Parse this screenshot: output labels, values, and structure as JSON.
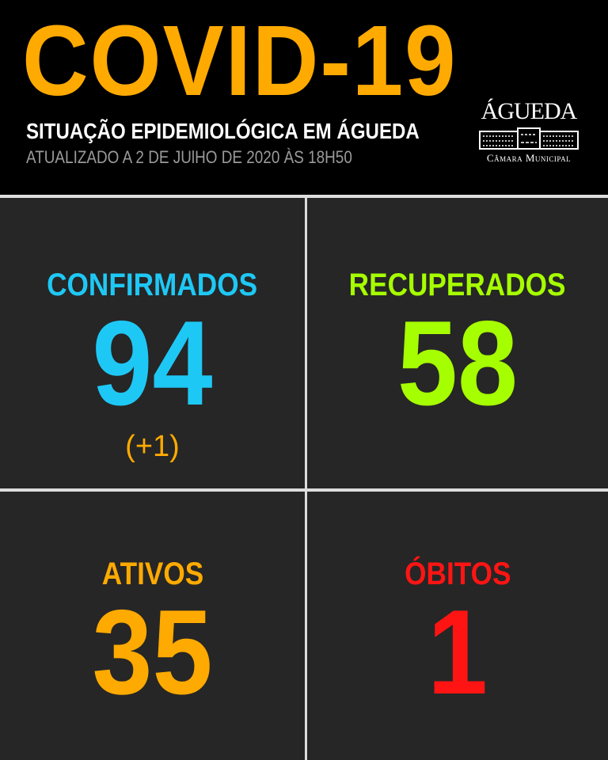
{
  "header": {
    "title": "COVID-19",
    "subtitle": "SITUAÇÃO EPIDEMIOLÓGICA EM ÁGUEDA",
    "updated": "ATUALIZADO A 2 DE JUlHO DE 2020 ÀS 18H50"
  },
  "logo": {
    "name": "ÁGUEDA",
    "caption": "Câmara Municipal",
    "icon": "town-hall-building-icon"
  },
  "stats": [
    {
      "label": "CONFIRMADOS",
      "value": "94",
      "delta": "(+1)",
      "color": "#1ec8f5"
    },
    {
      "label": "RECUPERADOS",
      "value": "58",
      "color": "#a6ff00"
    },
    {
      "label": "ATIVOS",
      "value": "35",
      "color": "#ffaa00"
    },
    {
      "label": "ÓBITOS",
      "value": "1",
      "color": "#ff1414"
    }
  ]
}
